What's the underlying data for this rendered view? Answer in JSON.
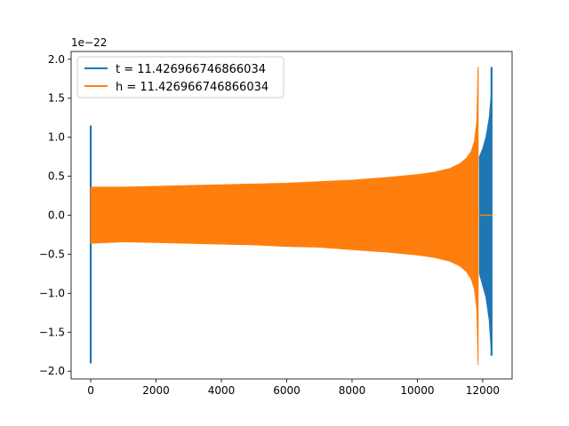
{
  "chart_data": {
    "type": "line",
    "offset_label": "1e−22",
    "xlim": [
      -600,
      12900
    ],
    "ylim": [
      -2.1,
      2.1
    ],
    "x_ticks": [
      0,
      2000,
      4000,
      6000,
      8000,
      10000,
      12000
    ],
    "x_tick_labels": [
      "0",
      "2000",
      "4000",
      "6000",
      "8000",
      "10000",
      "12000"
    ],
    "y_ticks": [
      -2.0,
      -1.5,
      -1.0,
      -0.5,
      0.0,
      0.5,
      1.0,
      1.5,
      2.0
    ],
    "y_tick_labels": [
      "−2.0",
      "−1.5",
      "−1.0",
      "−0.5",
      "0.0",
      "0.5",
      "1.0",
      "1.5",
      "2.0"
    ],
    "legend_position": "top-left",
    "series": [
      {
        "name": "t = 11.426966746866034",
        "color": "#1f77b4",
        "segments": [
          {
            "kind": "spike",
            "x": 0,
            "ymin": -1.9,
            "ymax": 1.15
          },
          {
            "kind": "envelope",
            "x": [
              11900,
              12000,
              12100,
              12200,
              12270
            ],
            "upper": [
              0.75,
              0.85,
              1.0,
              1.25,
              1.6
            ],
            "lower": [
              -0.75,
              -0.9,
              -1.05,
              -1.35,
              -1.8
            ]
          },
          {
            "kind": "spike",
            "x": 12270,
            "ymin": -1.8,
            "ymax": 1.9
          }
        ]
      },
      {
        "name": "h = 11.426966746866034",
        "color": "#ff7f0e",
        "segments": [
          {
            "kind": "envelope",
            "x": [
              0,
              1000,
              2000,
              3000,
              4000,
              5000,
              6000,
              7000,
              8000,
              9000,
              10000,
              10500,
              11000,
              11300,
              11500,
              11650,
              11750,
              11820,
              11860
            ],
            "upper": [
              0.36,
              0.36,
              0.37,
              0.38,
              0.39,
              0.4,
              0.41,
              0.43,
              0.45,
              0.48,
              0.52,
              0.55,
              0.6,
              0.66,
              0.73,
              0.82,
              0.95,
              1.2,
              1.9
            ],
            "lower": [
              -0.36,
              -0.34,
              -0.35,
              -0.36,
              -0.37,
              -0.38,
              -0.4,
              -0.41,
              -0.44,
              -0.47,
              -0.51,
              -0.54,
              -0.59,
              -0.65,
              -0.72,
              -0.82,
              -0.95,
              -1.2,
              -1.92
            ]
          },
          {
            "kind": "flat",
            "x": [
              11870,
              12300
            ],
            "y": 0.0
          }
        ]
      }
    ]
  }
}
